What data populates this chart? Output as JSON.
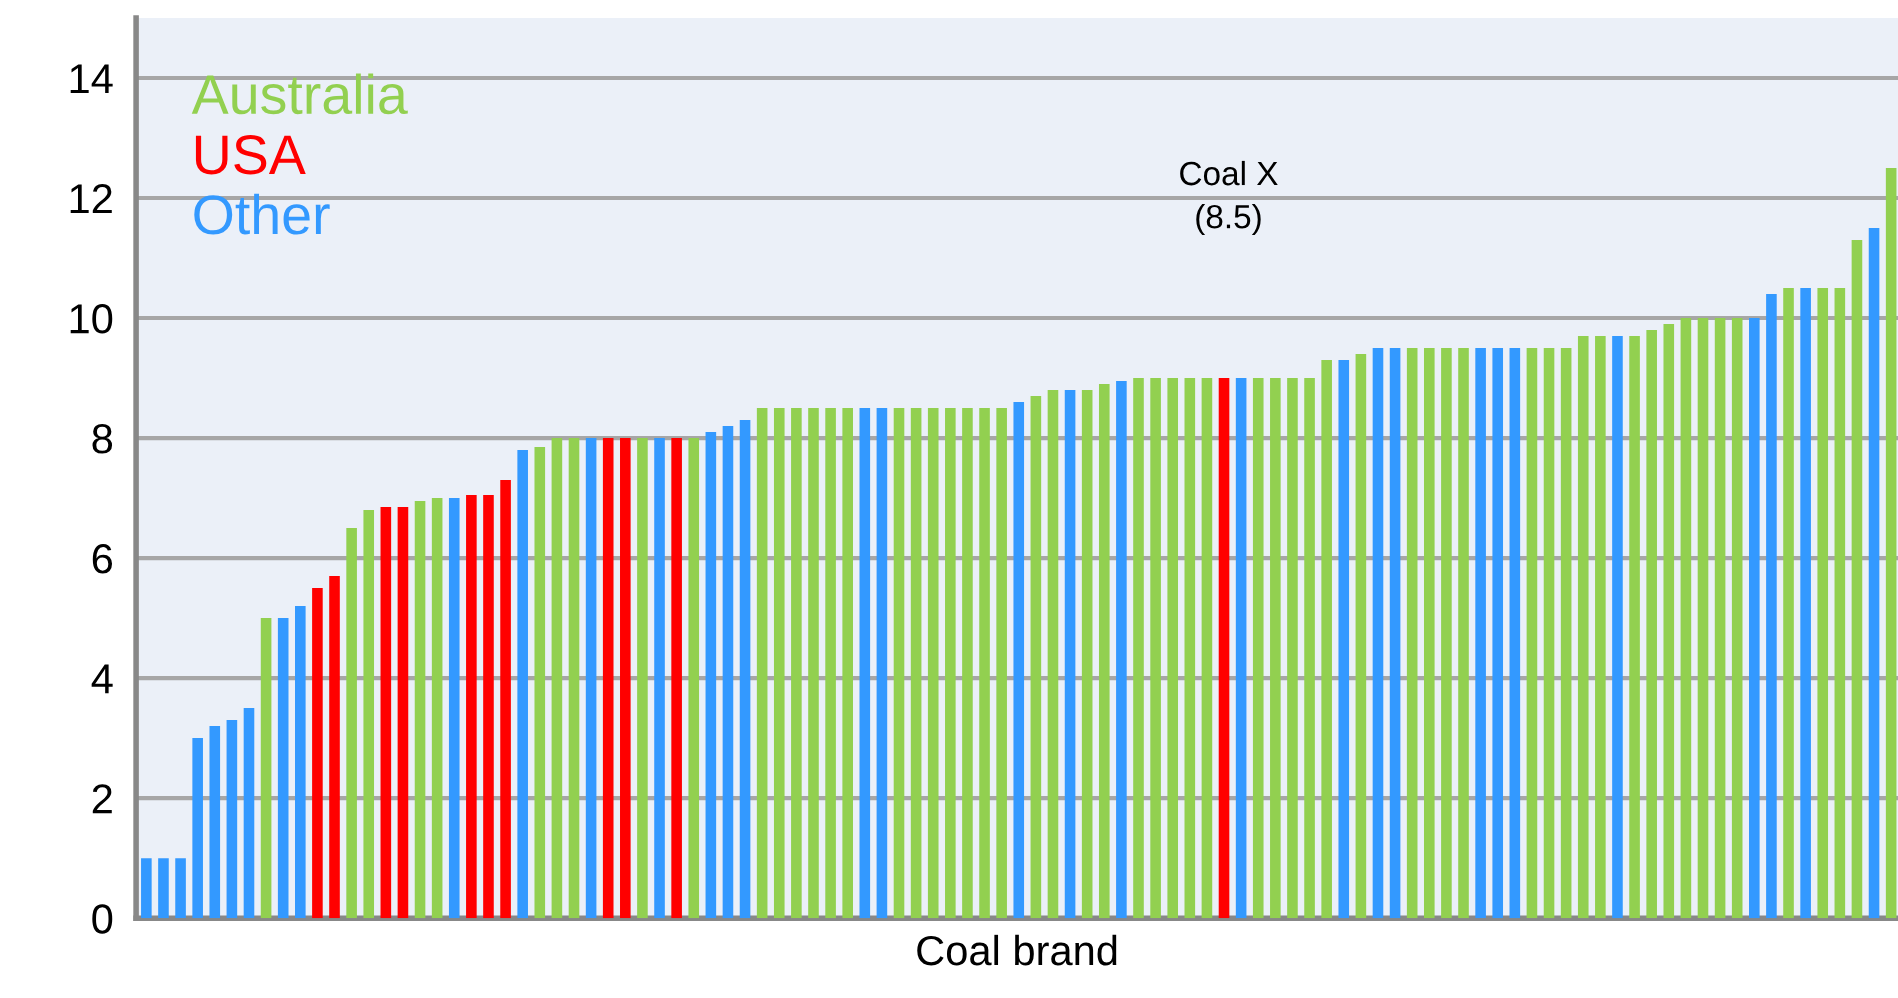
{
  "chart_data": {
    "type": "bar",
    "xlabel": "Coal brand",
    "categories": [
      null,
      null,
      null,
      null,
      null,
      null,
      null,
      null,
      null,
      null,
      null,
      null,
      null,
      null,
      null,
      null,
      null,
      null,
      null,
      null,
      null,
      null,
      null,
      null,
      null,
      null,
      null,
      null,
      null,
      null,
      null,
      null,
      null,
      null,
      null,
      null,
      null,
      null,
      null,
      null,
      null,
      null,
      null,
      null,
      null,
      null,
      null,
      null,
      null,
      null,
      null,
      null,
      null,
      null,
      null,
      null,
      null,
      null,
      null,
      null,
      null,
      null,
      null,
      null,
      null,
      null,
      null,
      null,
      null,
      null,
      null,
      null,
      null,
      null,
      null,
      null,
      null,
      null,
      null,
      null,
      null,
      null,
      null,
      null,
      null,
      null,
      null,
      null,
      null,
      null,
      null,
      null,
      null,
      null,
      null,
      null,
      null,
      null,
      null,
      null,
      null,
      null,
      null
    ],
    "series": [
      {
        "name": "Australia",
        "color": "#92d050",
        "values": [
          null,
          null,
          null,
          null,
          null,
          null,
          null,
          5.0,
          null,
          null,
          null,
          null,
          6.5,
          6.8,
          null,
          null,
          6.95,
          7.0,
          null,
          null,
          null,
          null,
          null,
          7.85,
          8.0,
          8.0,
          null,
          null,
          null,
          8.0,
          null,
          null,
          8.0,
          null,
          null,
          null,
          8.5,
          8.5,
          8.5,
          8.5,
          8.5,
          8.5,
          null,
          null,
          8.5,
          8.5,
          8.5,
          8.5,
          8.5,
          8.5,
          8.5,
          null,
          8.7,
          8.8,
          null,
          8.8,
          8.9,
          null,
          9.0,
          9.0,
          9.0,
          9.0,
          9.0,
          null,
          null,
          9.0,
          9.0,
          9.0,
          9.0,
          9.3,
          null,
          9.4,
          null,
          null,
          9.5,
          9.5,
          9.5,
          9.5,
          null,
          null,
          null,
          9.5,
          9.5,
          9.5,
          9.7,
          9.7,
          null,
          9.7,
          9.8,
          9.9,
          10.0,
          10.0,
          10.0,
          10.0,
          null,
          null,
          10.5,
          null,
          10.5,
          10.5,
          11.3,
          null,
          12.5
        ]
      },
      {
        "name": "USA",
        "color": "#ff0000",
        "values": [
          null,
          null,
          null,
          null,
          null,
          null,
          null,
          null,
          null,
          null,
          5.5,
          5.7,
          null,
          null,
          6.85,
          6.85,
          null,
          null,
          null,
          7.05,
          7.05,
          7.3,
          null,
          null,
          null,
          null,
          null,
          8.0,
          8.0,
          null,
          null,
          8.0,
          null,
          null,
          null,
          null,
          null,
          null,
          null,
          null,
          null,
          null,
          null,
          null,
          null,
          null,
          null,
          null,
          null,
          null,
          null,
          null,
          null,
          null,
          null,
          null,
          null,
          null,
          null,
          null,
          null,
          null,
          null,
          9.0,
          null,
          null,
          null,
          null,
          null,
          null,
          null,
          null,
          null,
          null,
          null,
          null,
          null,
          null,
          null,
          null,
          null,
          null,
          null,
          null,
          null,
          null,
          null,
          null,
          null,
          null,
          null,
          null,
          null,
          null,
          null,
          null,
          null,
          null,
          null,
          null,
          null,
          null,
          null
        ]
      },
      {
        "name": "Other",
        "color": "#3399ff",
        "values": [
          1.0,
          1.0,
          1.0,
          3.0,
          3.2,
          3.3,
          3.5,
          null,
          5.0,
          5.2,
          null,
          null,
          null,
          null,
          null,
          null,
          null,
          null,
          7.0,
          null,
          null,
          null,
          7.8,
          null,
          null,
          null,
          8.0,
          null,
          null,
          null,
          8.0,
          null,
          null,
          8.1,
          8.2,
          8.3,
          null,
          null,
          null,
          null,
          null,
          null,
          8.5,
          8.5,
          null,
          null,
          null,
          null,
          null,
          null,
          null,
          8.6,
          null,
          null,
          8.8,
          null,
          null,
          8.95,
          null,
          null,
          null,
          null,
          null,
          null,
          9.0,
          null,
          null,
          null,
          null,
          null,
          9.3,
          null,
          9.5,
          9.5,
          null,
          null,
          null,
          null,
          9.5,
          9.5,
          9.5,
          null,
          null,
          null,
          null,
          null,
          9.7,
          null,
          null,
          null,
          null,
          null,
          null,
          null,
          10.0,
          10.4,
          null,
          10.5,
          null,
          null,
          null,
          11.5,
          null
        ]
      }
    ],
    "ylim": [
      0,
      15
    ],
    "yticks": [
      0,
      2,
      4,
      6,
      8,
      10,
      12,
      14
    ],
    "grid": "y",
    "legend": "top left",
    "tick_labels": "y",
    "annotations": [
      "Coal X\n(8.5)"
    ]
  }
}
